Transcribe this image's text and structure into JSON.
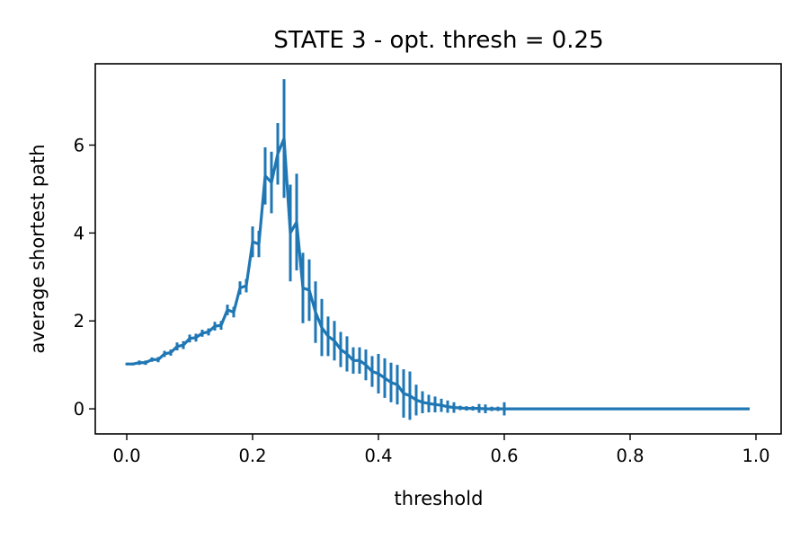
{
  "chart_data": {
    "type": "line",
    "title": "STATE 3  - opt. thresh = 0.25",
    "xlabel": "threshold",
    "ylabel": "average shortest path",
    "xlim": [
      -0.05,
      1.04
    ],
    "ylim": [
      -0.57,
      7.85
    ],
    "x_ticks": [
      0.0,
      0.2,
      0.4,
      0.6,
      0.8,
      1.0
    ],
    "x_tick_labels": [
      "0.0",
      "0.2",
      "0.4",
      "0.6",
      "0.8",
      "1.0"
    ],
    "y_ticks": [
      0,
      2,
      4,
      6
    ],
    "y_tick_labels": [
      "0",
      "2",
      "4",
      "6"
    ],
    "grid": false,
    "legend": "none",
    "color": "#1f77b4",
    "series": [
      {
        "x": [
          0.0,
          0.01,
          0.02,
          0.03,
          0.04,
          0.05,
          0.06,
          0.07,
          0.08,
          0.09,
          0.1,
          0.11,
          0.12,
          0.13,
          0.14,
          0.15,
          0.16,
          0.17,
          0.18,
          0.19,
          0.2,
          0.21,
          0.22,
          0.23,
          0.24,
          0.25,
          0.26,
          0.27,
          0.28,
          0.29,
          0.3,
          0.31,
          0.32,
          0.33,
          0.34,
          0.35,
          0.36,
          0.37,
          0.38,
          0.39,
          0.4,
          0.41,
          0.42,
          0.43,
          0.44,
          0.45,
          0.46,
          0.47,
          0.48,
          0.49,
          0.5,
          0.51,
          0.52,
          0.53,
          0.54,
          0.55,
          0.56,
          0.57,
          0.58,
          0.59,
          0.6,
          0.61,
          0.62,
          0.63,
          0.64,
          0.65,
          0.66,
          0.67,
          0.68,
          0.69,
          0.7,
          0.71,
          0.72,
          0.73,
          0.74,
          0.75,
          0.76,
          0.77,
          0.78,
          0.79,
          0.8,
          0.81,
          0.82,
          0.83,
          0.84,
          0.85,
          0.86,
          0.87,
          0.88,
          0.89,
          0.9,
          0.91,
          0.92,
          0.93,
          0.94,
          0.95,
          0.96,
          0.97,
          0.98,
          0.99
        ],
        "y": [
          1.02,
          1.02,
          1.05,
          1.05,
          1.12,
          1.12,
          1.25,
          1.28,
          1.42,
          1.45,
          1.6,
          1.62,
          1.72,
          1.75,
          1.88,
          1.9,
          2.25,
          2.2,
          2.75,
          2.8,
          3.8,
          3.75,
          5.3,
          5.15,
          5.8,
          6.15,
          4.0,
          4.25,
          2.75,
          2.7,
          2.2,
          1.85,
          1.65,
          1.55,
          1.35,
          1.25,
          1.1,
          1.1,
          1.0,
          0.85,
          0.8,
          0.7,
          0.6,
          0.55,
          0.35,
          0.3,
          0.2,
          0.15,
          0.12,
          0.1,
          0.08,
          0.05,
          0.03,
          0.02,
          0.01,
          0.01,
          0.01,
          0.0,
          0.0,
          0.0,
          0.0,
          0.0,
          0.0,
          0.0,
          0.0,
          0.0,
          0.0,
          0.0,
          0.0,
          0.0,
          0.0,
          0.0,
          0.0,
          0.0,
          0.0,
          0.0,
          0.0,
          0.0,
          0.0,
          0.0,
          0.0,
          0.0,
          0.0,
          0.0,
          0.0,
          0.0,
          0.0,
          0.0,
          0.0,
          0.0,
          0.0,
          0.0,
          0.0,
          0.0,
          0.0,
          0.0,
          0.0,
          0.0,
          0.0,
          0.0
        ],
        "yerr": [
          0.03,
          0.03,
          0.05,
          0.05,
          0.05,
          0.06,
          0.07,
          0.07,
          0.09,
          0.09,
          0.09,
          0.09,
          0.08,
          0.08,
          0.1,
          0.1,
          0.12,
          0.12,
          0.15,
          0.15,
          0.35,
          0.3,
          0.65,
          0.7,
          0.7,
          1.35,
          1.1,
          1.1,
          0.8,
          0.7,
          0.7,
          0.65,
          0.45,
          0.45,
          0.4,
          0.4,
          0.3,
          0.3,
          0.35,
          0.35,
          0.45,
          0.45,
          0.45,
          0.45,
          0.55,
          0.55,
          0.35,
          0.25,
          0.2,
          0.18,
          0.15,
          0.14,
          0.12,
          0.05,
          0.05,
          0.05,
          0.1,
          0.1,
          0.05,
          0.05,
          0.15,
          0.0,
          0.0,
          0.0,
          0.0,
          0.0,
          0.0,
          0.0,
          0.0,
          0.0,
          0.0,
          0.0,
          0.0,
          0.0,
          0.0,
          0.0,
          0.0,
          0.0,
          0.0,
          0.0,
          0.0,
          0.0,
          0.0,
          0.0,
          0.0,
          0.0,
          0.0,
          0.0,
          0.0,
          0.0,
          0.0,
          0.0,
          0.0,
          0.0,
          0.0,
          0.0,
          0.0,
          0.0,
          0.0,
          0.0
        ]
      }
    ]
  }
}
